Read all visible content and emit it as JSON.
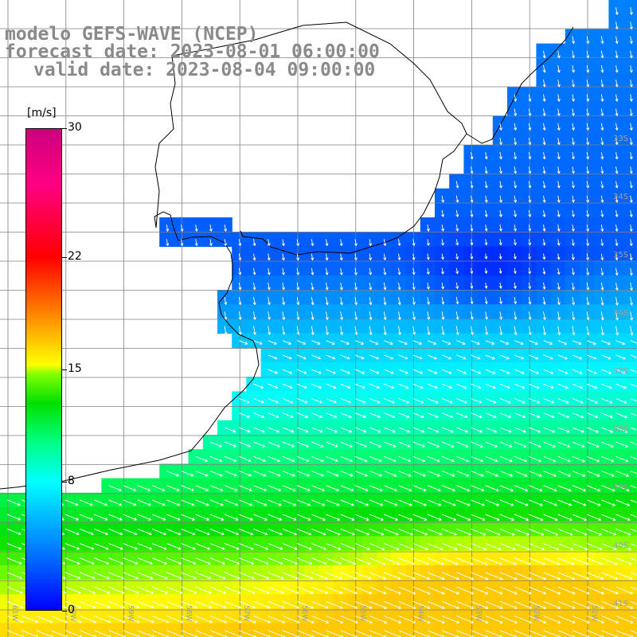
{
  "header": {
    "model_line": "modelo GEFS-WAVE (NCEP)",
    "forecast_line": "forecast date: 2023-08-01 06:00:00",
    "valid_line": "valid date: 2023-08-04 09:00:00"
  },
  "colorbar": {
    "unit": "[m/s]",
    "ticks": [
      {
        "label": "30",
        "value": 30
      },
      {
        "label": "22",
        "value": 22
      },
      {
        "label": "15",
        "value": 15
      },
      {
        "label": "8",
        "value": 8
      },
      {
        "label": "0",
        "value": 0
      }
    ]
  },
  "map": {
    "lat_labels": [
      "33S",
      "34S",
      "35S",
      "36S",
      "37S",
      "38S",
      "39S",
      "40S",
      "41S"
    ],
    "lon_labels": [
      "61W",
      "60W",
      "59W",
      "58W",
      "57W",
      "56W",
      "55W",
      "54W",
      "53W",
      "52W",
      "51W"
    ],
    "colors": {
      "land": "#ffffff",
      "coast": "#000000",
      "grid": "#808080",
      "arrow": "#ffffff"
    }
  }
}
